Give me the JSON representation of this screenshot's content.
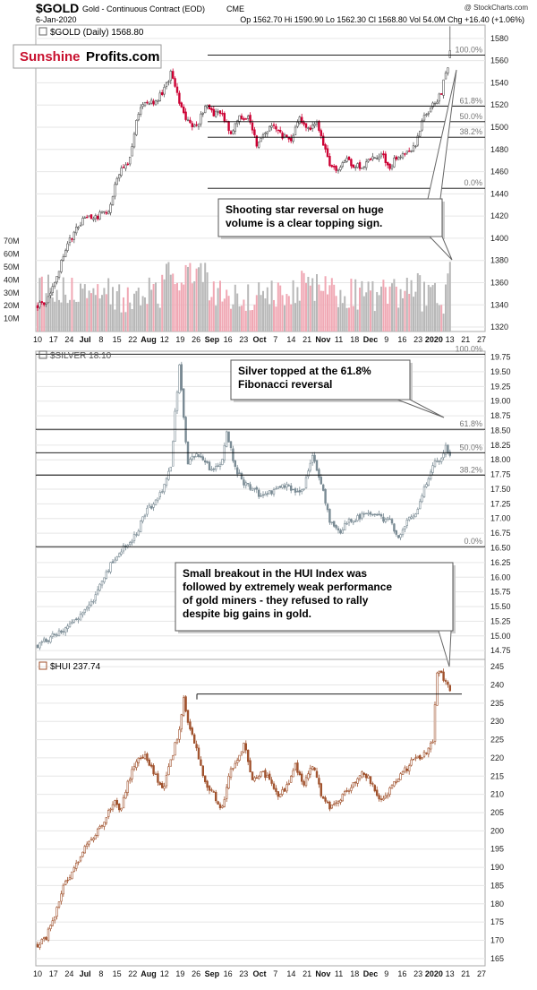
{
  "header": {
    "symbol": "$GOLD",
    "name": "Gold - Continuous Contract (EOD)",
    "exchange": "CME",
    "watermark": "@ StockCharts.com",
    "date": "6-Jan-2020",
    "ohlc": "Op 1562.70  Hi 1590.90  Lo 1562.30  Cl 1568.80  Vol 54.0M  Chg +16.40 (+1.06%)",
    "op_arrow": "▲"
  },
  "logo": {
    "part1": "Sunshine",
    "part2": "Profits.com"
  },
  "colors": {
    "up": "#555555",
    "down": "#cc0033",
    "silver": "#7a8b94",
    "hui": "#a0522d",
    "vol_up": "#b8b8b8",
    "vol_down": "#f0a8b4"
  },
  "x_axis": {
    "labels": [
      "10",
      "17",
      "24",
      "Jul",
      "8",
      "15",
      "22",
      "Aug",
      "12",
      "19",
      "26",
      "Sep",
      "16",
      "23",
      "Oct",
      "7",
      "14",
      "21",
      "Nov",
      "11",
      "18",
      "Dec",
      "9",
      "16",
      "23",
      "2020",
      "13",
      "21",
      "27"
    ],
    "bold": [
      "Jul",
      "Aug",
      "Sep",
      "Oct",
      "Nov",
      "Dec",
      "2020"
    ]
  },
  "chart_data": [
    {
      "type": "line",
      "panel": "gold",
      "legend": "$GOLD (Daily) 1568.80",
      "ylim": [
        1316,
        1592
      ],
      "y_ticks": [
        1320,
        1340,
        1360,
        1380,
        1400,
        1420,
        1440,
        1460,
        1480,
        1500,
        1520,
        1540,
        1560,
        1580
      ],
      "key_points": [
        [
          0,
          1340
        ],
        [
          5,
          1345
        ],
        [
          14,
          1395
        ],
        [
          22,
          1420
        ],
        [
          28,
          1420
        ],
        [
          33,
          1425
        ],
        [
          38,
          1460
        ],
        [
          42,
          1465
        ],
        [
          46,
          1505
        ],
        [
          50,
          1525
        ],
        [
          55,
          1522
        ],
        [
          60,
          1538
        ],
        [
          62,
          1548
        ],
        [
          66,
          1522
        ],
        [
          70,
          1505
        ],
        [
          74,
          1500
        ],
        [
          78,
          1520
        ],
        [
          82,
          1512
        ],
        [
          86,
          1512
        ],
        [
          90,
          1495
        ],
        [
          94,
          1508
        ],
        [
          98,
          1510
        ],
        [
          102,
          1485
        ],
        [
          106,
          1495
        ],
        [
          110,
          1503
        ],
        [
          114,
          1492
        ],
        [
          118,
          1490
        ],
        [
          122,
          1507
        ],
        [
          126,
          1497
        ],
        [
          130,
          1502
        ],
        [
          136,
          1468
        ],
        [
          140,
          1462
        ],
        [
          144,
          1470
        ],
        [
          148,
          1465
        ],
        [
          152,
          1465
        ],
        [
          156,
          1472
        ],
        [
          160,
          1475
        ],
        [
          164,
          1465
        ],
        [
          168,
          1475
        ],
        [
          172,
          1478
        ],
        [
          176,
          1483
        ],
        [
          180,
          1510
        ],
        [
          184,
          1520
        ],
        [
          188,
          1530
        ],
        [
          190,
          1550
        ],
        [
          192,
          1553
        ]
      ],
      "last_bar": {
        "open": 1562.7,
        "high": 1590.9,
        "low": 1562.3,
        "close": 1568.8
      },
      "volume": {
        "label_ticks": [
          "70M",
          "60M",
          "50M",
          "40M",
          "30M",
          "20M",
          "10M"
        ],
        "last": "54.0M"
      },
      "fib_levels": [
        {
          "label": "100.0%",
          "value": 1565
        },
        {
          "label": "61.8%",
          "value": 1519
        },
        {
          "label": "50.0%",
          "value": 1505
        },
        {
          "label": "38.2%",
          "value": 1491
        },
        {
          "label": "0.0%",
          "value": 1445
        }
      ],
      "annotation": "Shooting star reversal on huge\nvolume is a clear topping sign."
    },
    {
      "type": "line",
      "panel": "silver",
      "legend": "$SILVER 18.10",
      "ylim": [
        14.6,
        19.85
      ],
      "y_ticks": [
        14.75,
        15.0,
        15.25,
        15.5,
        15.75,
        16.0,
        16.25,
        16.5,
        16.75,
        17.0,
        17.25,
        17.5,
        17.75,
        18.0,
        18.25,
        18.5,
        18.75,
        19.0,
        19.25,
        19.5,
        19.75
      ],
      "key_points": [
        [
          0,
          14.85
        ],
        [
          5,
          14.95
        ],
        [
          10,
          15.05
        ],
        [
          16,
          15.25
        ],
        [
          22,
          15.4
        ],
        [
          26,
          15.6
        ],
        [
          30,
          15.95
        ],
        [
          34,
          16.2
        ],
        [
          38,
          16.45
        ],
        [
          42,
          16.55
        ],
        [
          46,
          16.75
        ],
        [
          50,
          17.1
        ],
        [
          54,
          17.25
        ],
        [
          58,
          17.5
        ],
        [
          62,
          17.9
        ],
        [
          64,
          18.8
        ],
        [
          66,
          19.6
        ],
        [
          68,
          18.7
        ],
        [
          70,
          17.95
        ],
        [
          74,
          18.1
        ],
        [
          78,
          17.95
        ],
        [
          82,
          17.8
        ],
        [
          86,
          18.0
        ],
        [
          88,
          18.5
        ],
        [
          92,
          17.85
        ],
        [
          96,
          17.6
        ],
        [
          100,
          17.5
        ],
        [
          104,
          17.4
        ],
        [
          108,
          17.45
        ],
        [
          112,
          17.5
        ],
        [
          116,
          17.6
        ],
        [
          120,
          17.4
        ],
        [
          124,
          17.55
        ],
        [
          128,
          18.1
        ],
        [
          132,
          17.6
        ],
        [
          136,
          16.95
        ],
        [
          140,
          16.75
        ],
        [
          144,
          16.95
        ],
        [
          148,
          17.0
        ],
        [
          152,
          17.05
        ],
        [
          156,
          17.1
        ],
        [
          160,
          17.0
        ],
        [
          164,
          16.95
        ],
        [
          168,
          16.7
        ],
        [
          172,
          16.95
        ],
        [
          176,
          17.1
        ],
        [
          180,
          17.5
        ],
        [
          184,
          17.95
        ],
        [
          188,
          18.05
        ],
        [
          190,
          18.2
        ],
        [
          192,
          18.1
        ]
      ],
      "fib_levels": [
        {
          "label": "100.0%",
          "value": 19.8
        },
        {
          "label": "61.8%",
          "value": 18.52
        },
        {
          "label": "50.0%",
          "value": 18.12
        },
        {
          "label": "38.2%",
          "value": 17.74
        },
        {
          "label": "0.0%",
          "value": 16.52
        }
      ],
      "annotation": "Silver topped at the 61.8%\nFibonacci reversal"
    },
    {
      "type": "line",
      "panel": "hui",
      "legend": "$HUI 237.74",
      "ylim": [
        163,
        247
      ],
      "y_ticks": [
        165,
        170,
        175,
        180,
        185,
        190,
        195,
        200,
        205,
        210,
        215,
        220,
        225,
        230,
        235,
        240,
        245
      ],
      "key_points": [
        [
          0,
          169
        ],
        [
          4,
          171
        ],
        [
          8,
          176
        ],
        [
          12,
          185
        ],
        [
          16,
          188
        ],
        [
          20,
          193
        ],
        [
          24,
          197
        ],
        [
          28,
          200
        ],
        [
          32,
          204
        ],
        [
          36,
          208
        ],
        [
          38,
          205
        ],
        [
          42,
          213
        ],
        [
          46,
          219
        ],
        [
          50,
          221
        ],
        [
          54,
          216
        ],
        [
          58,
          211
        ],
        [
          62,
          219
        ],
        [
          66,
          228
        ],
        [
          68,
          236
        ],
        [
          70,
          230
        ],
        [
          74,
          223
        ],
        [
          78,
          213
        ],
        [
          82,
          210
        ],
        [
          86,
          206
        ],
        [
          90,
          217
        ],
        [
          94,
          220
        ],
        [
          96,
          224
        ],
        [
          100,
          214
        ],
        [
          104,
          216
        ],
        [
          108,
          214
        ],
        [
          112,
          209
        ],
        [
          116,
          212
        ],
        [
          120,
          218
        ],
        [
          124,
          213
        ],
        [
          128,
          218
        ],
        [
          132,
          210
        ],
        [
          136,
          206
        ],
        [
          140,
          208
        ],
        [
          144,
          211
        ],
        [
          148,
          214
        ],
        [
          152,
          216
        ],
        [
          156,
          213
        ],
        [
          160,
          208
        ],
        [
          164,
          211
        ],
        [
          168,
          215
        ],
        [
          172,
          217
        ],
        [
          174,
          220
        ],
        [
          178,
          220
        ],
        [
          182,
          222
        ],
        [
          184,
          225
        ],
        [
          186,
          243
        ],
        [
          188,
          243
        ],
        [
          190,
          241
        ],
        [
          192,
          238
        ]
      ],
      "resistance": 237.5,
      "annotation": "Small breakout in the HUI Index was\nfollowed by extremely weak performance\nof gold miners - they refused to rally\ndespite big gains in gold."
    }
  ]
}
